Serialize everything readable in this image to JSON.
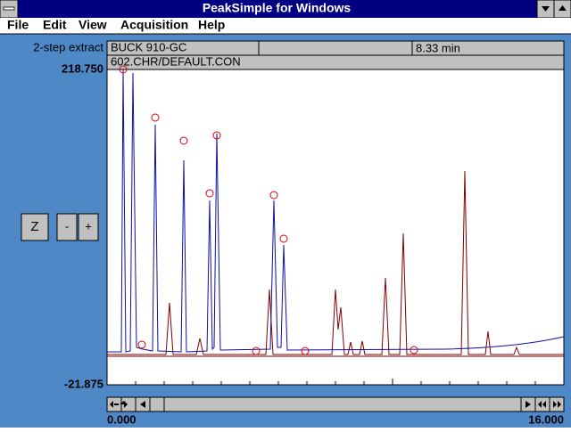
{
  "window": {
    "title": "PeakSimple for Windows"
  },
  "menu": [
    "File",
    "Edit",
    "View",
    "Acquisition",
    "Help"
  ],
  "header": {
    "label": "2-step extract",
    "instrument": "BUCK 910-GC",
    "time": "8.33 min",
    "file": "602.CHR/DEFAULT.CON"
  },
  "axis": {
    "y_top": "218.750",
    "y_bottom": "-21.875",
    "x_left": "0.000",
    "x_right": "16.000"
  },
  "buttons": [
    "Z",
    "-",
    "+"
  ]
}
